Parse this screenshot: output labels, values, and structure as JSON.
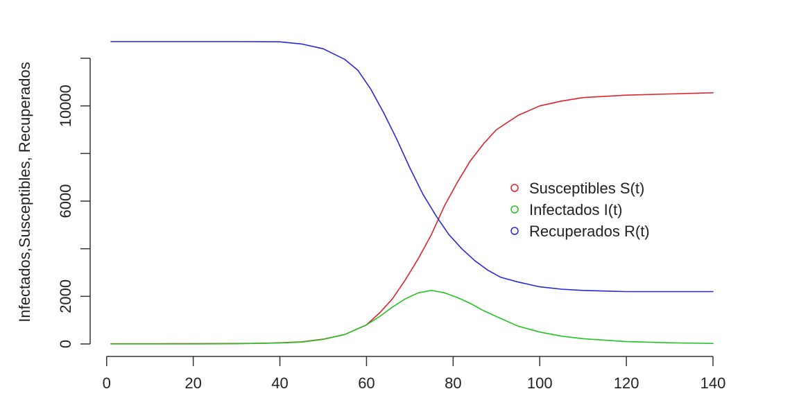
{
  "chart_data": {
    "type": "line",
    "xlabel": "",
    "ylabel": "Infectados,Susceptibles, Recuperados",
    "xlim": [
      1,
      140
    ],
    "ylim": [
      0,
      12700
    ],
    "x_ticks": [
      0,
      20,
      40,
      60,
      80,
      100,
      120,
      140
    ],
    "y_ticks": [
      0,
      2000,
      6000,
      10000
    ],
    "y_ticks_unlabeled": [
      4000,
      8000,
      12000
    ],
    "grid": false,
    "legend_position": "center-right",
    "series": [
      {
        "name": "Susceptibles S(t)",
        "color": "#e0202c",
        "x": [
          1,
          10,
          20,
          30,
          36,
          40,
          45,
          50,
          55,
          60,
          63,
          66,
          69,
          72,
          75,
          78,
          81,
          84,
          87,
          90,
          95,
          100,
          105,
          110,
          120,
          130,
          140
        ],
        "y": [
          10,
          10,
          15,
          20,
          30,
          50,
          90,
          200,
          400,
          800,
          1300,
          1900,
          2700,
          3600,
          4600,
          5800,
          6800,
          7700,
          8400,
          9000,
          9600,
          10000,
          10200,
          10350,
          10450,
          10500,
          10550
        ]
      },
      {
        "name": "Infectados I(t)",
        "color": "#22c422",
        "x": [
          1,
          10,
          20,
          30,
          40,
          45,
          50,
          55,
          60,
          63,
          66,
          69,
          72,
          75,
          78,
          81,
          84,
          87,
          90,
          95,
          100,
          105,
          110,
          120,
          130,
          140
        ],
        "y": [
          0,
          0,
          0,
          10,
          40,
          80,
          190,
          400,
          800,
          1150,
          1550,
          1900,
          2150,
          2250,
          2150,
          1950,
          1700,
          1400,
          1150,
          750,
          500,
          330,
          220,
          100,
          50,
          20
        ]
      },
      {
        "name": "Recuperados R(t)",
        "color": "#2727d8",
        "x": [
          1,
          10,
          20,
          30,
          40,
          45,
          50,
          55,
          58,
          61,
          64,
          67,
          70,
          73,
          76,
          79,
          82,
          85,
          88,
          91,
          95,
          100,
          105,
          110,
          120,
          130,
          140
        ],
        "y": [
          12700,
          12700,
          12700,
          12700,
          12690,
          12600,
          12400,
          11950,
          11500,
          10700,
          9700,
          8600,
          7400,
          6300,
          5400,
          4600,
          4000,
          3500,
          3100,
          2800,
          2600,
          2400,
          2300,
          2250,
          2200,
          2200,
          2200
        ]
      }
    ]
  }
}
